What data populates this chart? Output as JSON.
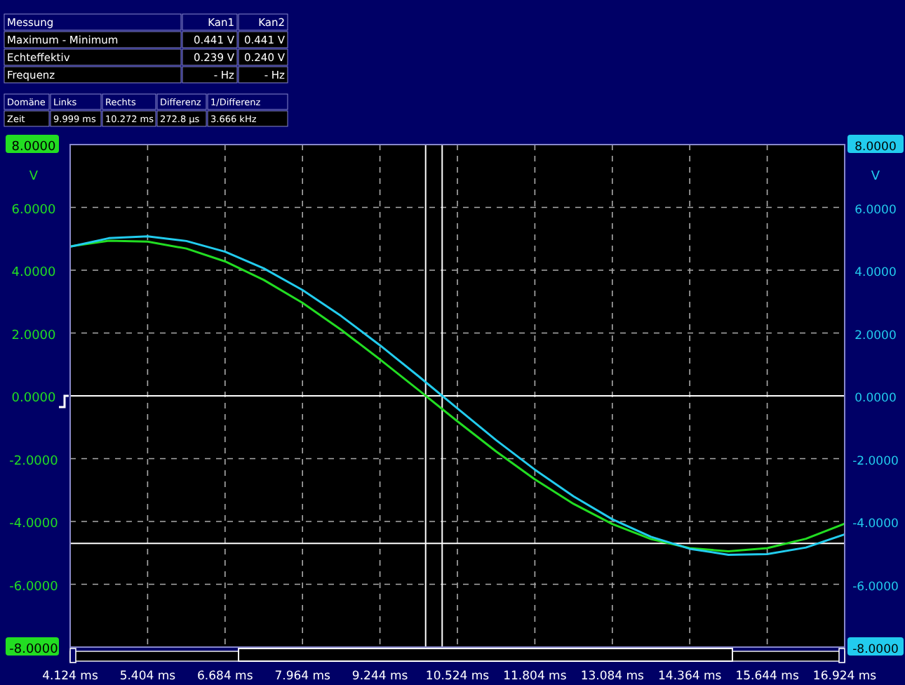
{
  "chart_data": {
    "type": "line",
    "ylabel": "V",
    "y2label": "V",
    "x": [
      4.124,
      4.764,
      5.404,
      6.044,
      6.684,
      7.324,
      7.964,
      8.604,
      9.244,
      9.884,
      10.524,
      11.164,
      11.804,
      12.444,
      13.084,
      13.724,
      14.364,
      15.004,
      15.644,
      16.284,
      16.924
    ],
    "series": [
      {
        "color": "#22dd22",
        "values": [
          4.76,
          4.94,
          4.91,
          4.69,
          4.28,
          3.69,
          2.96,
          2.1,
          1.16,
          0.18,
          -0.81,
          -1.77,
          -2.66,
          -3.44,
          -4.08,
          -4.56,
          -4.85,
          -4.95,
          -4.85,
          -4.55,
          -4.07
        ]
      },
      {
        "color": "#22ccee",
        "axis": "y2",
        "values": [
          4.75,
          5.02,
          5.08,
          4.93,
          4.59,
          4.06,
          3.37,
          2.54,
          1.61,
          0.62,
          -0.4,
          -1.41,
          -2.35,
          -3.2,
          -3.93,
          -4.49,
          -4.87,
          -5.06,
          -5.04,
          -4.83,
          -4.41
        ]
      }
    ],
    "xlim": [
      4.124,
      16.924
    ],
    "xticks": [
      {
        "value": 4.124,
        "label": "4.124 ms"
      },
      {
        "value": 5.404,
        "label": "5.404 ms"
      },
      {
        "value": 6.684,
        "label": "6.684 ms"
      },
      {
        "value": 7.964,
        "label": "7.964 ms"
      },
      {
        "value": 9.244,
        "label": "9.244 ms"
      },
      {
        "value": 10.524,
        "label": "10.524 ms"
      },
      {
        "value": 11.804,
        "label": "11.804 ms"
      },
      {
        "value": 13.084,
        "label": "13.084 ms"
      },
      {
        "value": 14.364,
        "label": "14.364 ms"
      },
      {
        "value": 15.644,
        "label": "15.644 ms"
      },
      {
        "value": 16.924,
        "label": "16.924 ms"
      }
    ],
    "ylim": [
      -8,
      8
    ],
    "yticks": [
      {
        "value": -8,
        "label": "-8.0000"
      },
      {
        "value": -6,
        "label": "-6.0000"
      },
      {
        "value": -4,
        "label": "-4.0000"
      },
      {
        "value": -2,
        "label": "-2.0000"
      },
      {
        "value": 0,
        "label": "0.0000"
      },
      {
        "value": 2,
        "label": "2.0000"
      },
      {
        "value": 4,
        "label": "4.0000"
      },
      {
        "value": 6,
        "label": "6.0000"
      },
      {
        "value": 8,
        "label": "8.0000"
      }
    ],
    "y2lim": [
      -8,
      8
    ],
    "y2ticks": [
      {
        "value": -8,
        "label": "-8.0000"
      },
      {
        "value": -6,
        "label": "-6.0000"
      },
      {
        "value": -4,
        "label": "-4.0000"
      },
      {
        "value": -2,
        "label": "-2.0000"
      },
      {
        "value": 0,
        "label": "0.0000"
      },
      {
        "value": 2,
        "label": "2.0000"
      },
      {
        "value": 4,
        "label": "4.0000"
      },
      {
        "value": 6,
        "label": "6.0000"
      },
      {
        "value": 8,
        "label": "8.0000"
      }
    ],
    "grid": true,
    "line_style": "solid",
    "ref_lines": [
      {
        "axis": "y",
        "value": 0,
        "color": "#ffffff"
      },
      {
        "axis": "x",
        "value": 9.999,
        "color": "#ffffff"
      },
      {
        "axis": "x",
        "value": 10.272,
        "color": "#ffffff"
      },
      {
        "axis": "y",
        "value": -4.7,
        "color": "#ffffff"
      }
    ],
    "annotations": [
      "Messung",
      "Kan1",
      "Kan2",
      "Maximum - Minimum",
      "0.441 V",
      "0.441 V",
      "Echteffektiv",
      "0.239 V",
      "0.240 V",
      "Frequenz",
      "- Hz",
      "- Hz",
      "Domäne",
      "Links",
      "Rechts",
      "Differenz",
      "1/Differenz",
      "Zeit",
      "9.999 ms",
      "10.272 ms",
      "272.8 µs",
      "3.666 kHz"
    ]
  }
}
